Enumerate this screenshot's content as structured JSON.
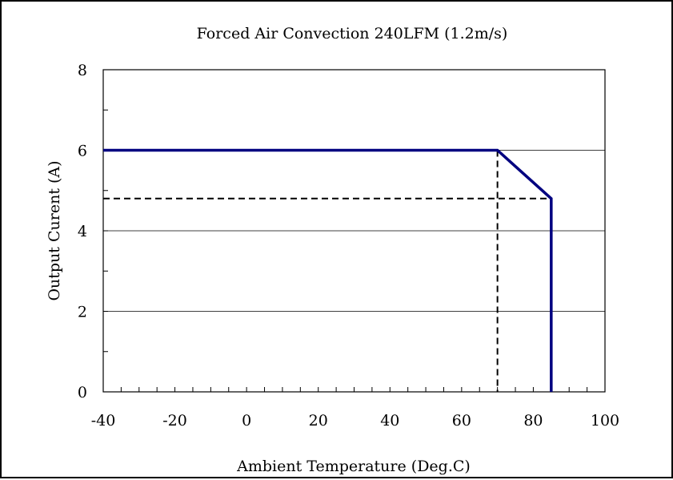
{
  "chart_data": {
    "type": "line",
    "title": "Forced Air Convection 240LFM (1.2m/s)",
    "xlabel": "Ambient Temperature (Deg.C)",
    "ylabel": "Output Curent (A)",
    "xlim": [
      -40,
      100
    ],
    "ylim": [
      0,
      8
    ],
    "x_ticks": [
      "-40",
      "-20",
      "0",
      "20",
      "40",
      "60",
      "80",
      "100"
    ],
    "y_ticks": [
      "0",
      "2",
      "4",
      "6",
      "8"
    ],
    "grid": "horizontal",
    "series": [
      {
        "line_style": "solid",
        "color": "#000080",
        "x": [
          -40,
          70,
          85,
          85
        ],
        "y": [
          6,
          6,
          4.8,
          0
        ]
      }
    ],
    "reference_lines": [
      {
        "line_style": "dashed",
        "color": "#000000",
        "x": [
          -40,
          85
        ],
        "y": [
          4.8,
          4.8
        ]
      },
      {
        "line_style": "dashed",
        "color": "#000000",
        "x": [
          70,
          70
        ],
        "y": [
          6,
          0
        ]
      }
    ]
  }
}
